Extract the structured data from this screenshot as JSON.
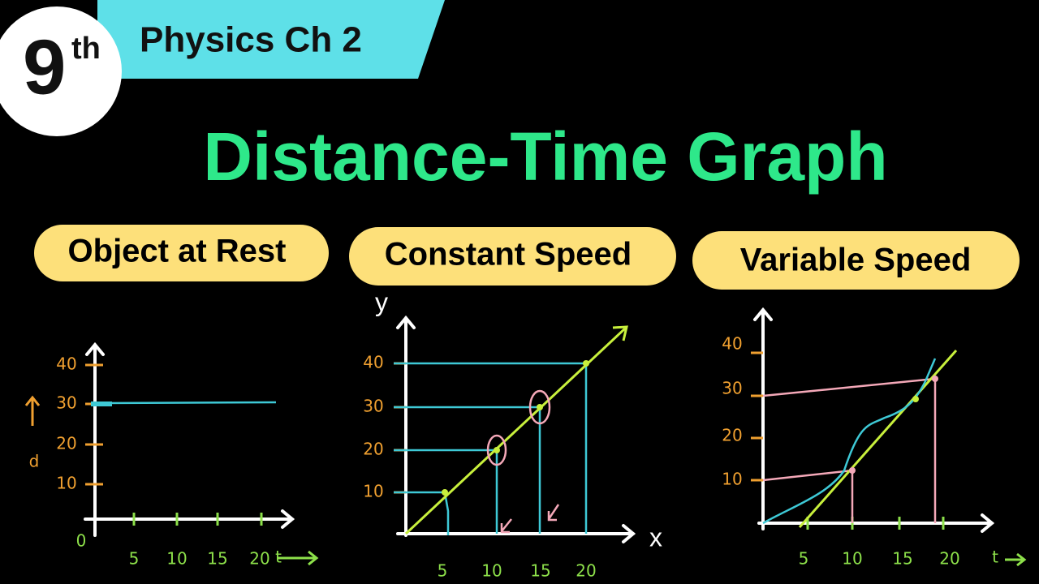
{
  "badge": {
    "number": "9",
    "suffix": "th"
  },
  "banner": "Physics Ch 2",
  "title": "Distance-Time Graph",
  "panels": [
    {
      "label": "Object at Rest",
      "y_axis_label": "d",
      "y_ticks": [
        "40",
        "30",
        "20",
        "10"
      ],
      "x_ticks": [
        "0",
        "5",
        "10",
        "15",
        "20"
      ],
      "x_axis_label": "t"
    },
    {
      "label": "Constant Speed",
      "y_axis_label": "y",
      "y_ticks": [
        "40",
        "30",
        "20",
        "10"
      ],
      "x_ticks": [
        "5",
        "10",
        "15",
        "20"
      ],
      "x_axis_label": "x"
    },
    {
      "label": "Variable Speed",
      "y_ticks": [
        "40",
        "30",
        "20",
        "10"
      ],
      "x_ticks": [
        "5",
        "10",
        "15",
        "20"
      ],
      "x_axis_label": "t"
    }
  ]
}
